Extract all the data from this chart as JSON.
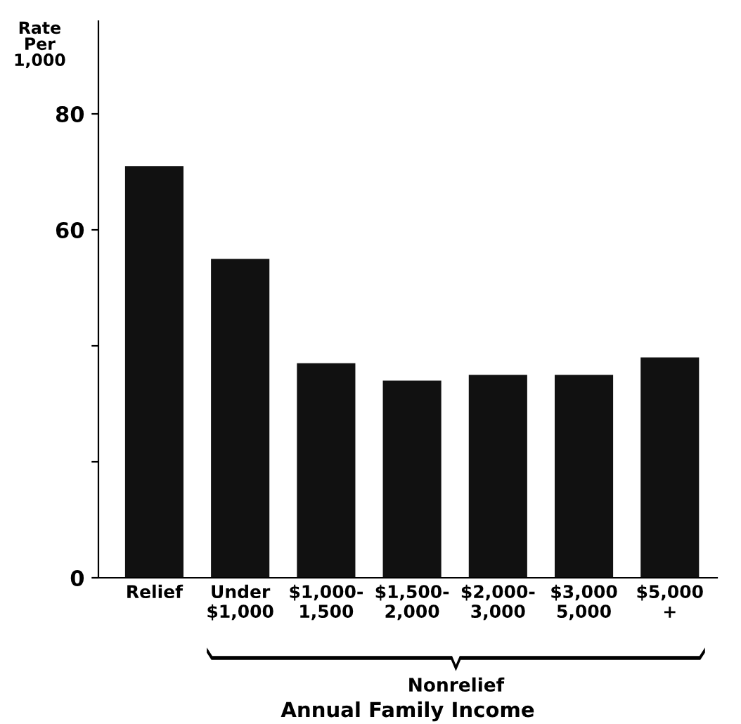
{
  "chart_data": {
    "type": "bar",
    "ylabel": "Rate\nPer\n1,000",
    "xlabel": "Annual Family Income",
    "annotations": [
      "Nonrelief"
    ],
    "categories": [
      "Relief",
      "Under\n$1,000",
      "$1,000-\n1,500",
      "$1,500-\n2,000",
      "$2,000-\n3,000",
      "$3,000\n5,000",
      "$5,000\n+"
    ],
    "values": [
      71,
      55,
      37,
      34,
      35,
      35,
      38
    ],
    "color": "#111111",
    "ylim": [
      0,
      96
    ],
    "yticks": [
      0,
      {
        "value": 20,
        "label": null
      },
      {
        "value": 40,
        "label": null
      },
      60,
      80
    ],
    "grid": false
  }
}
